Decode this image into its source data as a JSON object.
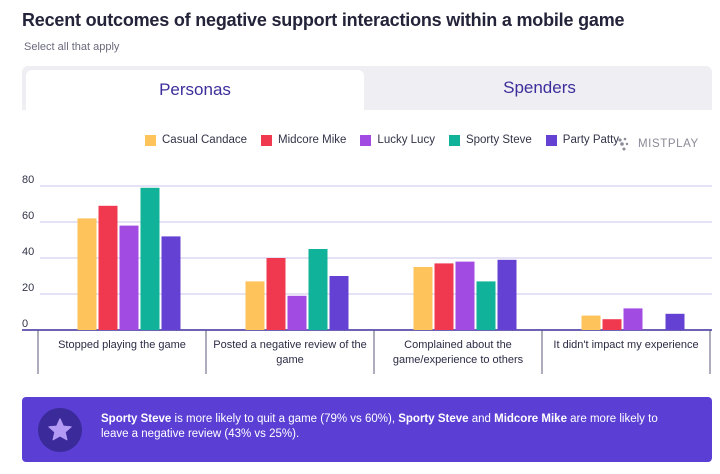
{
  "header": {
    "title": "Recent outcomes of negative support interactions within a mobile game",
    "subtitle": "Select all that apply"
  },
  "tabs": [
    {
      "label": "Personas",
      "active": true
    },
    {
      "label": "Spenders",
      "active": false
    }
  ],
  "brand": {
    "name": "MISTPLAY",
    "icon": "mistplay-dots-icon"
  },
  "colors": {
    "accent": "#3d2e9b",
    "callout_bg": "#5b3fd4",
    "callout_icon_bg": "#3a2a9a",
    "star": "#b39af5"
  },
  "chart_data": {
    "type": "bar",
    "categories": [
      "Stopped playing the game",
      "Posted a negative review of the game",
      "Complained about the game/experience to others",
      "It didn't impact my experience"
    ],
    "category_lines": [
      [
        "Stopped playing the game"
      ],
      [
        "Posted a negative review of the",
        "game"
      ],
      [
        "Complained about the",
        "game/experience to others"
      ],
      [
        "It didn't impact my experience"
      ]
    ],
    "series": [
      {
        "name": "Casual Candace",
        "color": "#fec35a",
        "values": [
          62,
          27,
          35,
          8
        ]
      },
      {
        "name": "Midcore Mike",
        "color": "#f0394f",
        "values": [
          69,
          40,
          37,
          6
        ]
      },
      {
        "name": "Lucky Lucy",
        "color": "#a24be3",
        "values": [
          58,
          19,
          38,
          12
        ]
      },
      {
        "name": "Sporty Steve",
        "color": "#10b399",
        "values": [
          79,
          45,
          27,
          0
        ]
      },
      {
        "name": "Party Patty",
        "color": "#6441d2",
        "values": [
          52,
          30,
          39,
          9
        ]
      }
    ],
    "yticks": [
      0,
      20,
      40,
      60,
      80
    ],
    "ylim": [
      0,
      80
    ],
    "grid": true,
    "legend": "top"
  },
  "callout": {
    "parts": [
      {
        "text": "Sporty Steve",
        "bold": true
      },
      {
        "text": " is more likely to quit a game (79% vs 60%), ",
        "bold": false
      },
      {
        "text": "Sporty Steve",
        "bold": true
      },
      {
        "text": " and ",
        "bold": false
      },
      {
        "text": "Midcore Mike",
        "bold": true
      },
      {
        "text": " are more likely to leave a negative review (43% vs 25%).",
        "bold": false
      }
    ],
    "icon": "star-icon"
  }
}
